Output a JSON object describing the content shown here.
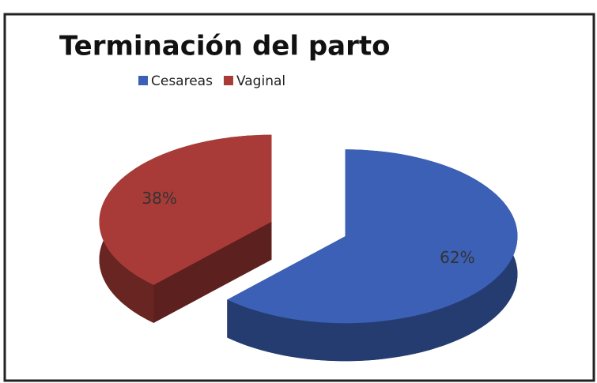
{
  "chart_data": {
    "type": "pie",
    "title": "Terminación del parto",
    "categories": [
      "Cesareas",
      "Vaginal"
    ],
    "values": [
      62,
      38
    ],
    "value_labels": [
      "62%",
      "38%"
    ],
    "colors": [
      "#3b60b6",
      "#a83b37"
    ],
    "legend": "top"
  }
}
